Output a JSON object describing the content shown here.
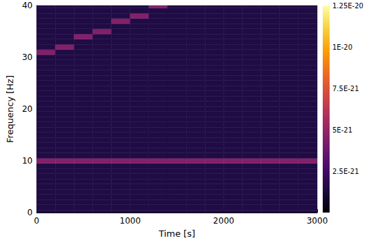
{
  "chart_data": {
    "type": "heatmap",
    "x_label": "Time [s]",
    "y_label": "Frequency [Hz]",
    "xlim": [
      0,
      3000
    ],
    "xticks": [
      0,
      1000,
      2000,
      3000
    ],
    "ylim": [
      0,
      40
    ],
    "yticks": [
      0,
      10,
      20,
      30,
      40
    ],
    "grid": false,
    "times": [
      100,
      300,
      500,
      700,
      900,
      1100,
      1300,
      1500,
      1700,
      1900,
      2100,
      2300,
      2500,
      2700,
      2900
    ],
    "frequencies": [
      0,
      1,
      2,
      3,
      4,
      5,
      6,
      7,
      8,
      9,
      10,
      11,
      12,
      13,
      14,
      15,
      16,
      17,
      18,
      19,
      20,
      21,
      22,
      23,
      24,
      25,
      26,
      27,
      28,
      29,
      30,
      31,
      32,
      33,
      34,
      35,
      36,
      37,
      38,
      39,
      40
    ],
    "power": [
      [
        1.5e-21,
        1.5e-21,
        1.5e-21,
        1.5e-21,
        1.5e-21,
        1.5e-21,
        1.5e-21,
        1.5e-21,
        1.5e-21,
        1.5e-21,
        1.5e-21,
        1.5e-21,
        1.5e-21,
        1.5e-21,
        1.5e-21
      ],
      [
        1.5e-21,
        1.5e-21,
        1.5e-21,
        1.5e-21,
        1.5e-21,
        1.5e-21,
        1.5e-21,
        1.5e-21,
        1.5e-21,
        1.5e-21,
        1.5e-21,
        1.5e-21,
        1.5e-21,
        1.5e-21,
        1.5e-21
      ],
      [
        1.5e-21,
        1.5e-21,
        1.5e-21,
        1.5e-21,
        1.5e-21,
        1.5e-21,
        1.5e-21,
        1.5e-21,
        1.5e-21,
        1.5e-21,
        1.5e-21,
        1.5e-21,
        1.5e-21,
        1.5e-21,
        1.5e-21
      ],
      [
        1.5e-21,
        1.5e-21,
        1.5e-21,
        1.5e-21,
        1.5e-21,
        1.5e-21,
        1.5e-21,
        1.5e-21,
        1.5e-21,
        1.5e-21,
        1.5e-21,
        1.5e-21,
        1.5e-21,
        1.5e-21,
        1.5e-21
      ],
      [
        1.5e-21,
        1.5e-21,
        1.5e-21,
        1.5e-21,
        1.5e-21,
        1.5e-21,
        1.5e-21,
        1.5e-21,
        1.5e-21,
        1.5e-21,
        1.5e-21,
        1.5e-21,
        1.5e-21,
        1.5e-21,
        1.5e-21
      ],
      [
        1.5e-21,
        1.5e-21,
        1.5e-21,
        1.5e-21,
        1.5e-21,
        1.5e-21,
        1.5e-21,
        1.5e-21,
        1.5e-21,
        1.5e-21,
        1.5e-21,
        1.5e-21,
        1.5e-21,
        1.5e-21,
        1.5e-21
      ],
      [
        1.5e-21,
        1.5e-21,
        1.5e-21,
        1.5e-21,
        1.5e-21,
        1.5e-21,
        1.5e-21,
        1.5e-21,
        1.5e-21,
        1.5e-21,
        1.5e-21,
        1.5e-21,
        1.5e-21,
        1.5e-21,
        1.5e-21
      ],
      [
        1.5e-21,
        1.5e-21,
        1.5e-21,
        1.5e-21,
        1.5e-21,
        1.5e-21,
        1.5e-21,
        1.5e-21,
        1.5e-21,
        1.5e-21,
        1.5e-21,
        1.5e-21,
        1.5e-21,
        1.5e-21,
        1.5e-21
      ],
      [
        1.5e-21,
        1.5e-21,
        1.5e-21,
        1.5e-21,
        1.5e-21,
        1.5e-21,
        1.5e-21,
        1.5e-21,
        1.5e-21,
        1.5e-21,
        1.5e-21,
        1.5e-21,
        1.5e-21,
        1.5e-21,
        1.5e-21
      ],
      [
        1.5e-21,
        1.5e-21,
        1.5e-21,
        1.5e-21,
        1.5e-21,
        1.5e-21,
        1.5e-21,
        1.5e-21,
        1.5e-21,
        1.5e-21,
        1.5e-21,
        1.5e-21,
        1.5e-21,
        1.5e-21,
        1.5e-21
      ],
      [
        4.5e-21,
        4.5e-21,
        4.5e-21,
        4.5e-21,
        4.5e-21,
        4.5e-21,
        4.5e-21,
        4.5e-21,
        4.5e-21,
        4.5e-21,
        4.5e-21,
        4.5e-21,
        4.5e-21,
        4.5e-21,
        4.5e-21
      ],
      [
        1.5e-21,
        1.5e-21,
        1.5e-21,
        1.5e-21,
        1.5e-21,
        1.5e-21,
        1.5e-21,
        1.5e-21,
        1.5e-21,
        1.5e-21,
        1.5e-21,
        1.5e-21,
        1.5e-21,
        1.5e-21,
        1.5e-21
      ],
      [
        1.5e-21,
        1.5e-21,
        1.5e-21,
        1.5e-21,
        1.5e-21,
        1.5e-21,
        1.5e-21,
        1.5e-21,
        1.5e-21,
        1.5e-21,
        1.5e-21,
        1.5e-21,
        1.5e-21,
        1.5e-21,
        1.5e-21
      ],
      [
        1.5e-21,
        1.5e-21,
        1.5e-21,
        1.5e-21,
        1.5e-21,
        1.5e-21,
        1.5e-21,
        1.5e-21,
        1.5e-21,
        1.5e-21,
        1.5e-21,
        1.5e-21,
        1.5e-21,
        1.5e-21,
        1.5e-21
      ],
      [
        1.5e-21,
        1.5e-21,
        1.5e-21,
        1.5e-21,
        1.5e-21,
        1.5e-21,
        1.5e-21,
        1.5e-21,
        1.5e-21,
        1.5e-21,
        1.5e-21,
        1.5e-21,
        1.5e-21,
        1.5e-21,
        1.5e-21
      ],
      [
        1.5e-21,
        1.5e-21,
        1.5e-21,
        1.5e-21,
        1.5e-21,
        1.5e-21,
        1.5e-21,
        1.5e-21,
        1.5e-21,
        1.5e-21,
        1.5e-21,
        1.5e-21,
        1.5e-21,
        1.5e-21,
        1.5e-21
      ],
      [
        1.5e-21,
        1.5e-21,
        1.5e-21,
        1.5e-21,
        1.5e-21,
        1.5e-21,
        1.5e-21,
        1.5e-21,
        1.5e-21,
        1.5e-21,
        1.5e-21,
        1.5e-21,
        1.5e-21,
        1.5e-21,
        1.5e-21
      ],
      [
        1.5e-21,
        1.5e-21,
        1.5e-21,
        1.5e-21,
        1.5e-21,
        1.5e-21,
        1.5e-21,
        1.5e-21,
        1.5e-21,
        1.5e-21,
        1.5e-21,
        1.5e-21,
        1.5e-21,
        1.5e-21,
        1.5e-21
      ],
      [
        1.5e-21,
        1.5e-21,
        1.5e-21,
        1.5e-21,
        1.5e-21,
        1.5e-21,
        1.5e-21,
        1.5e-21,
        1.5e-21,
        1.5e-21,
        1.5e-21,
        1.5e-21,
        1.5e-21,
        1.5e-21,
        1.5e-21
      ],
      [
        1.5e-21,
        1.5e-21,
        1.5e-21,
        1.5e-21,
        1.5e-21,
        1.5e-21,
        1.5e-21,
        1.5e-21,
        1.5e-21,
        1.5e-21,
        1.5e-21,
        1.5e-21,
        1.5e-21,
        1.5e-21,
        1.5e-21
      ],
      [
        1.5e-21,
        1.5e-21,
        1.5e-21,
        1.5e-21,
        1.5e-21,
        1.5e-21,
        1.5e-21,
        1.5e-21,
        1.5e-21,
        1.5e-21,
        1.5e-21,
        1.5e-21,
        1.5e-21,
        1.5e-21,
        1.5e-21
      ],
      [
        1.5e-21,
        1.5e-21,
        1.5e-21,
        1.5e-21,
        1.5e-21,
        1.5e-21,
        1.5e-21,
        1.5e-21,
        1.5e-21,
        1.5e-21,
        1.5e-21,
        1.5e-21,
        1.5e-21,
        1.5e-21,
        1.5e-21
      ],
      [
        1.5e-21,
        1.5e-21,
        1.5e-21,
        1.5e-21,
        1.5e-21,
        1.5e-21,
        1.5e-21,
        1.5e-21,
        1.5e-21,
        1.5e-21,
        1.5e-21,
        1.5e-21,
        1.5e-21,
        1.5e-21,
        1.5e-21
      ],
      [
        1.5e-21,
        1.5e-21,
        1.5e-21,
        1.5e-21,
        1.5e-21,
        1.5e-21,
        1.5e-21,
        1.5e-21,
        1.5e-21,
        1.5e-21,
        1.5e-21,
        1.5e-21,
        1.5e-21,
        1.5e-21,
        1.5e-21
      ],
      [
        1.5e-21,
        1.5e-21,
        1.5e-21,
        1.5e-21,
        1.5e-21,
        1.5e-21,
        1.5e-21,
        1.5e-21,
        1.5e-21,
        1.5e-21,
        1.5e-21,
        1.5e-21,
        1.5e-21,
        1.5e-21,
        1.5e-21
      ],
      [
        1.5e-21,
        1.5e-21,
        1.5e-21,
        1.5e-21,
        1.5e-21,
        1.5e-21,
        1.5e-21,
        1.5e-21,
        1.5e-21,
        1.5e-21,
        1.5e-21,
        1.5e-21,
        1.5e-21,
        1.5e-21,
        1.5e-21
      ],
      [
        1.5e-21,
        1.5e-21,
        1.5e-21,
        1.5e-21,
        1.5e-21,
        1.5e-21,
        1.5e-21,
        1.5e-21,
        1.5e-21,
        1.5e-21,
        1.5e-21,
        1.5e-21,
        1.5e-21,
        1.5e-21,
        1.5e-21
      ],
      [
        1.5e-21,
        1.5e-21,
        1.5e-21,
        1.5e-21,
        1.5e-21,
        1.5e-21,
        1.5e-21,
        1.5e-21,
        1.5e-21,
        1.5e-21,
        1.5e-21,
        1.5e-21,
        1.5e-21,
        1.5e-21,
        1.5e-21
      ],
      [
        1.5e-21,
        1.5e-21,
        1.5e-21,
        1.5e-21,
        1.5e-21,
        1.5e-21,
        1.5e-21,
        1.5e-21,
        1.5e-21,
        1.5e-21,
        1.5e-21,
        1.5e-21,
        1.5e-21,
        1.5e-21,
        1.5e-21
      ],
      [
        1.5e-21,
        1.5e-21,
        1.5e-21,
        1.5e-21,
        1.5e-21,
        1.5e-21,
        1.5e-21,
        1.5e-21,
        1.5e-21,
        1.5e-21,
        1.5e-21,
        1.5e-21,
        1.5e-21,
        1.5e-21,
        1.5e-21
      ],
      [
        1.5e-21,
        1.5e-21,
        1.5e-21,
        1.5e-21,
        1.5e-21,
        1.5e-21,
        1.5e-21,
        1.5e-21,
        1.5e-21,
        1.5e-21,
        1.5e-21,
        1.5e-21,
        1.5e-21,
        1.5e-21,
        1.5e-21
      ],
      [
        4.5e-21,
        1.5e-21,
        1.5e-21,
        1.5e-21,
        1.5e-21,
        1.5e-21,
        1.5e-21,
        1.5e-21,
        1.5e-21,
        1.5e-21,
        1.5e-21,
        1.5e-21,
        1.5e-21,
        1.5e-21,
        1.5e-21
      ],
      [
        1.5e-21,
        4.5e-21,
        1.5e-21,
        1.5e-21,
        1.5e-21,
        1.5e-21,
        1.5e-21,
        1.5e-21,
        1.5e-21,
        1.5e-21,
        1.5e-21,
        1.5e-21,
        1.5e-21,
        1.5e-21,
        1.5e-21
      ],
      [
        1.5e-21,
        1.5e-21,
        1.5e-21,
        1.5e-21,
        1.5e-21,
        1.5e-21,
        1.5e-21,
        1.5e-21,
        1.5e-21,
        1.5e-21,
        1.5e-21,
        1.5e-21,
        1.5e-21,
        1.5e-21,
        1.5e-21
      ],
      [
        1.5e-21,
        1.5e-21,
        4.5e-21,
        1.5e-21,
        1.5e-21,
        1.5e-21,
        1.5e-21,
        1.5e-21,
        1.5e-21,
        1.5e-21,
        1.5e-21,
        1.5e-21,
        1.5e-21,
        1.5e-21,
        1.5e-21
      ],
      [
        1.5e-21,
        1.5e-21,
        1.5e-21,
        4.5e-21,
        1.5e-21,
        1.5e-21,
        1.5e-21,
        1.5e-21,
        1.5e-21,
        1.5e-21,
        1.5e-21,
        1.5e-21,
        1.5e-21,
        1.5e-21,
        1.5e-21
      ],
      [
        1.5e-21,
        1.5e-21,
        1.5e-21,
        1.5e-21,
        1.5e-21,
        1.5e-21,
        1.5e-21,
        1.5e-21,
        1.5e-21,
        1.5e-21,
        1.5e-21,
        1.5e-21,
        1.5e-21,
        1.5e-21,
        1.5e-21
      ],
      [
        1.5e-21,
        1.5e-21,
        1.5e-21,
        1.5e-21,
        4.5e-21,
        1.5e-21,
        1.5e-21,
        1.5e-21,
        1.5e-21,
        1.5e-21,
        1.5e-21,
        1.5e-21,
        1.5e-21,
        1.5e-21,
        1.5e-21
      ],
      [
        1.5e-21,
        1.5e-21,
        1.5e-21,
        1.5e-21,
        1.5e-21,
        4.5e-21,
        1.5e-21,
        1.5e-21,
        1.5e-21,
        1.5e-21,
        1.5e-21,
        1.5e-21,
        1.5e-21,
        1.5e-21,
        1.5e-21
      ],
      [
        1.5e-21,
        1.5e-21,
        1.5e-21,
        1.5e-21,
        1.5e-21,
        1.5e-21,
        1.5e-21,
        1.5e-21,
        1.5e-21,
        1.5e-21,
        1.5e-21,
        1.5e-21,
        1.5e-21,
        1.5e-21,
        1.5e-21
      ],
      [
        1.5e-21,
        1.5e-21,
        1.5e-21,
        1.5e-21,
        1.5e-21,
        1.5e-21,
        4.5e-21,
        1.5e-21,
        1.5e-21,
        1.5e-21,
        1.5e-21,
        1.5e-21,
        1.5e-21,
        1.5e-21,
        1.5e-21
      ]
    ],
    "colorbar": {
      "range": [
        0,
        1.25e-20
      ],
      "ticks": [
        {
          "value": 2.5e-21,
          "label": "2.5E-21"
        },
        {
          "value": 5e-21,
          "label": "5E-21"
        },
        {
          "value": 7.5e-21,
          "label": "7.5E-21"
        },
        {
          "value": 1e-20,
          "label": "1E-20"
        },
        {
          "value": 1.25e-20,
          "label": "1.25E-20"
        }
      ]
    }
  }
}
